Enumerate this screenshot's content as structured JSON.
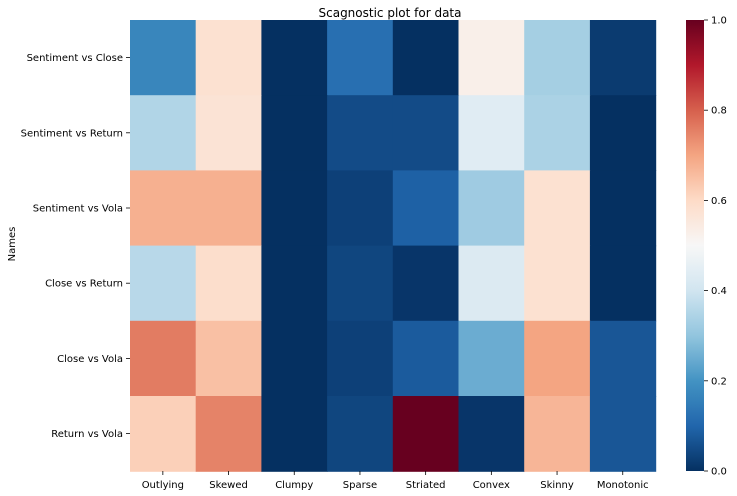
{
  "chart_data": {
    "type": "heatmap",
    "title": "Scagnostic plot for data",
    "ylabel": "Names",
    "xlabel": "",
    "columns": [
      "Outlying",
      "Skewed",
      "Clumpy",
      "Sparse",
      "Striated",
      "Convex",
      "Skinny",
      "Monotonic"
    ],
    "rows": [
      "Sentiment vs Close",
      "Sentiment vs Return",
      "Sentiment vs Vola",
      "Close vs Return",
      "Close vs Vola",
      "Return vs Vola"
    ],
    "values": [
      [
        0.17,
        0.58,
        0.0,
        0.12,
        0.0,
        0.53,
        0.33,
        0.02
      ],
      [
        0.35,
        0.57,
        0.0,
        0.05,
        0.05,
        0.44,
        0.34,
        0.0
      ],
      [
        0.68,
        0.68,
        0.0,
        0.03,
        0.09,
        0.32,
        0.58,
        0.0
      ],
      [
        0.36,
        0.59,
        0.0,
        0.04,
        0.01,
        0.43,
        0.58,
        0.0
      ],
      [
        0.76,
        0.65,
        0.0,
        0.03,
        0.08,
        0.25,
        0.7,
        0.07
      ],
      [
        0.62,
        0.75,
        0.0,
        0.04,
        1.0,
        0.01,
        0.67,
        0.07
      ]
    ],
    "colorbar": {
      "colormap": "RdBu_r",
      "vmin": 0.0,
      "vmax": 1.0,
      "ticks": [
        "0.0",
        "0.2",
        "0.4",
        "0.6",
        "0.8",
        "1.0"
      ]
    }
  }
}
